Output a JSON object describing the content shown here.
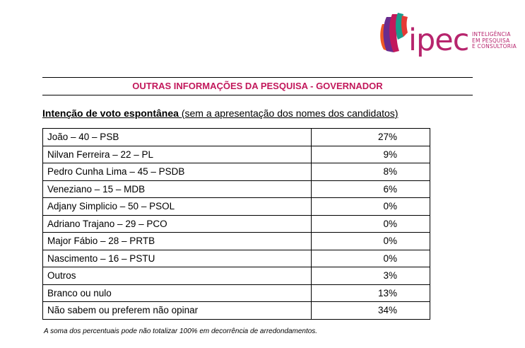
{
  "logo": {
    "word": "ipec",
    "tagline": [
      "INTELIGÊNCIA",
      "EM PESQUISA",
      "E CONSULTORIA"
    ],
    "colors": {
      "orange": "#f15a24",
      "magenta": "#c2185b",
      "purple": "#6a2c8e",
      "teal": "#1a9c8c",
      "red": "#e53935"
    }
  },
  "section_title": "OUTRAS INFORMAÇÕES DA PESQUISA - GOVERNADOR",
  "subtitle": {
    "bold": "Intenção de voto espontânea",
    "normal": " (sem a apresentação dos nomes dos candidatos)"
  },
  "rows": [
    {
      "name": "João – 40 – PSB",
      "pct": "27%"
    },
    {
      "name": "Nilvan Ferreira – 22 – PL",
      "pct": "9%"
    },
    {
      "name": "Pedro Cunha Lima – 45 – PSDB",
      "pct": "8%"
    },
    {
      "name": "Veneziano – 15 – MDB",
      "pct": "6%"
    },
    {
      "name": "Adjany Simplicio – 50 – PSOL",
      "pct": "0%"
    },
    {
      "name": "Adriano Trajano – 29 – PCO",
      "pct": "0%"
    },
    {
      "name": "Major Fábio – 28 – PRTB",
      "pct": "0%"
    },
    {
      "name": "Nascimento – 16 – PSTU",
      "pct": "0%"
    },
    {
      "name": "Outros",
      "pct": "3%"
    },
    {
      "name": "Branco ou nulo",
      "pct": "13%"
    },
    {
      "name": "Não sabem ou preferem não opinar",
      "pct": "34%"
    }
  ],
  "footnote": "A soma dos percentuais pode não totalizar 100% em decorrência de arredondamentos."
}
